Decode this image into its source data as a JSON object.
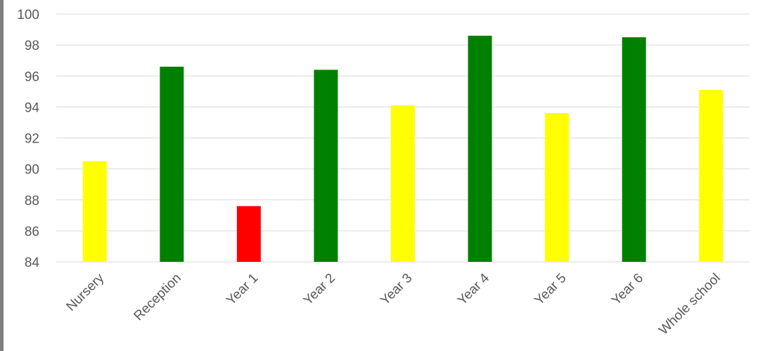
{
  "chart_data": {
    "type": "bar",
    "title": "",
    "xlabel": "",
    "ylabel": "",
    "categories": [
      "Nursery",
      "Reception",
      "Year 1",
      "Year 2",
      "Year 3",
      "Year 4",
      "Year 5",
      "Year 6",
      "Whole school"
    ],
    "values": [
      90.5,
      96.6,
      87.6,
      96.4,
      94.1,
      98.6,
      93.6,
      98.5,
      95.1
    ],
    "bar_colors": [
      "#ffff00",
      "#008000",
      "#ff0000",
      "#008000",
      "#ffff00",
      "#008000",
      "#ffff00",
      "#008000",
      "#ffff00"
    ],
    "ylim": [
      84,
      100
    ],
    "yticks": [
      84,
      86,
      88,
      90,
      92,
      94,
      96,
      98,
      100
    ],
    "grid": true,
    "legend": "none"
  }
}
